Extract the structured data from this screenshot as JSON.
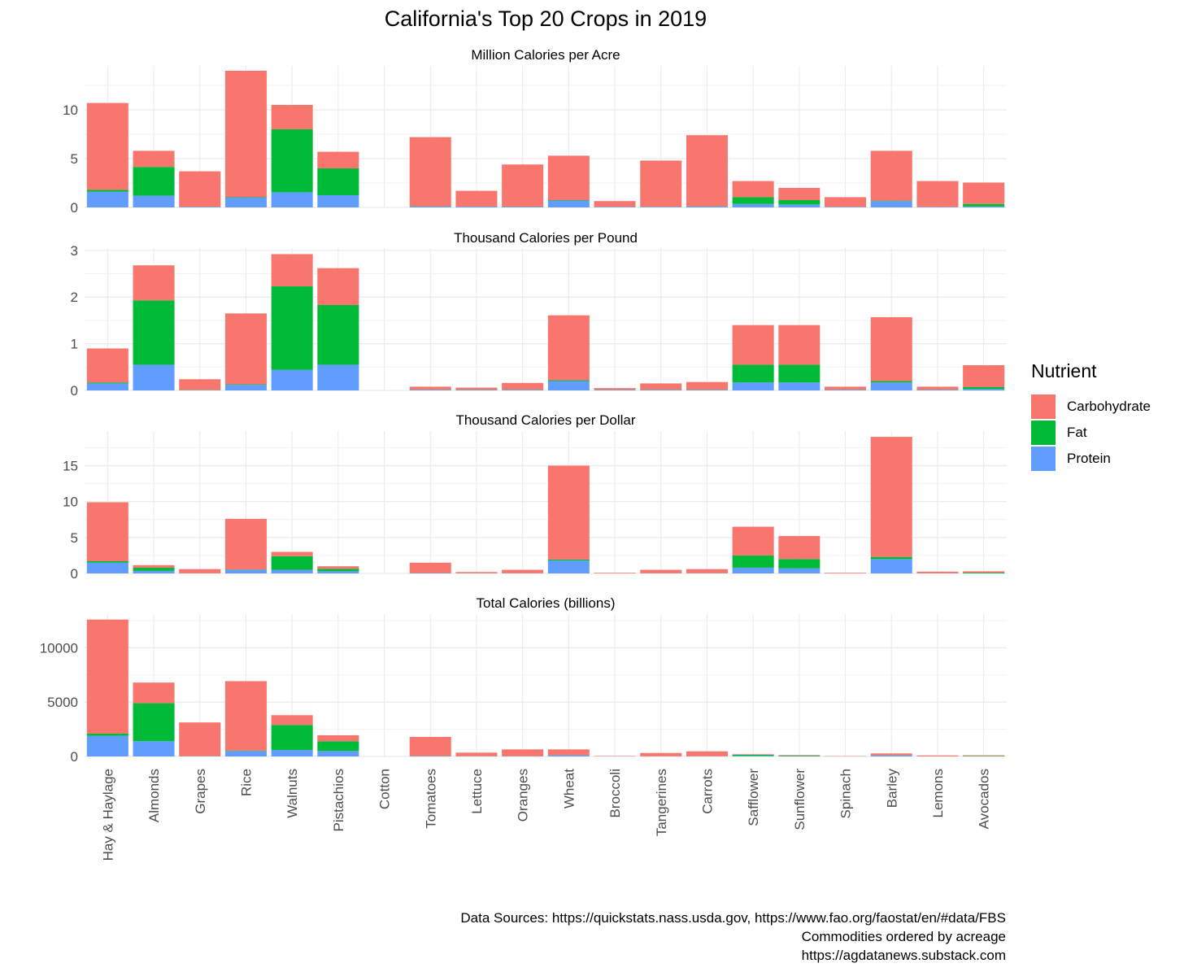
{
  "chart_data": {
    "type": "bar",
    "stacked": true,
    "title": "California's Top 20 Crops in 2019",
    "categories": [
      "Hay & Haylage",
      "Almonds",
      "Grapes",
      "Rice",
      "Walnuts",
      "Pistachios",
      "Cotton",
      "Tomatoes",
      "Lettuce",
      "Oranges",
      "Wheat",
      "Broccoli",
      "Tangerines",
      "Carrots",
      "Safflower",
      "Sunflower",
      "Spinach",
      "Barley",
      "Lemons",
      "Avocados"
    ],
    "legend": {
      "title": "Nutrient",
      "position": "right",
      "entries": [
        {
          "name": "Carbohydrate",
          "color": "#F8766D"
        },
        {
          "name": "Fat",
          "color": "#00BA38"
        },
        {
          "name": "Protein",
          "color": "#619CFF"
        }
      ]
    },
    "panels": [
      {
        "title": "Million Calories per Acre",
        "ylim": [
          0,
          14.5
        ],
        "yticks": [
          0,
          5,
          10
        ],
        "series": [
          {
            "name": "Protein",
            "values": [
              1.6,
              1.2,
              0.05,
              1.0,
              1.55,
              1.25,
              0,
              0.1,
              0.08,
              0.06,
              0.7,
              0.05,
              0.06,
              0.1,
              0.35,
              0.3,
              0.05,
              0.65,
              0.04,
              0.1
            ]
          },
          {
            "name": "Fat",
            "values": [
              0.2,
              2.95,
              0.02,
              0.05,
              6.45,
              2.75,
              0,
              0.02,
              0.01,
              0.02,
              0.05,
              0.01,
              0.01,
              0.02,
              0.7,
              0.45,
              0.01,
              0.05,
              0.01,
              0.25
            ]
          },
          {
            "name": "Carbohydrate",
            "values": [
              8.9,
              1.65,
              3.63,
              12.95,
              2.5,
              1.7,
              0,
              7.08,
              1.61,
              4.32,
              4.55,
              0.59,
              4.73,
              7.28,
              1.65,
              1.25,
              0.99,
              5.1,
              2.65,
              2.2
            ]
          }
        ]
      },
      {
        "title": "Thousand Calories per Pound",
        "ylim": [
          0,
          3.05
        ],
        "yticks": [
          0,
          1,
          2,
          3
        ],
        "series": [
          {
            "name": "Protein",
            "values": [
              0.15,
              0.55,
              0.005,
              0.12,
              0.44,
              0.55,
              0,
              0.01,
              0.01,
              0.01,
              0.2,
              0.01,
              0.01,
              0.01,
              0.17,
              0.17,
              0.01,
              0.17,
              0.01,
              0.03
            ]
          },
          {
            "name": "Fat",
            "values": [
              0.02,
              1.38,
              0.005,
              0.01,
              1.79,
              1.28,
              0,
              0.005,
              0.005,
              0.005,
              0.02,
              0.005,
              0.005,
              0.005,
              0.38,
              0.38,
              0.005,
              0.03,
              0.005,
              0.04
            ]
          },
          {
            "name": "Carbohydrate",
            "values": [
              0.73,
              0.75,
              0.23,
              1.52,
              0.69,
              0.79,
              0,
              0.065,
              0.045,
              0.145,
              1.39,
              0.035,
              0.135,
              0.165,
              0.85,
              0.85,
              0.065,
              1.37,
              0.065,
              0.47
            ]
          }
        ]
      },
      {
        "title": "Thousand Calories per Dollar",
        "ylim": [
          0,
          19.8
        ],
        "yticks": [
          0,
          5,
          10,
          15
        ],
        "series": [
          {
            "name": "Protein",
            "values": [
              1.5,
              0.35,
              0.01,
              0.5,
              0.5,
              0.3,
              0,
              0.05,
              0.02,
              0.02,
              1.8,
              0.01,
              0.02,
              0.03,
              0.8,
              0.7,
              0.01,
              2.0,
              0.01,
              0.01
            ]
          },
          {
            "name": "Fat",
            "values": [
              0.2,
              0.45,
              0.01,
              0.05,
              1.9,
              0.35,
              0,
              0.01,
              0.01,
              0.01,
              0.15,
              0.01,
              0.01,
              0.01,
              1.7,
              1.3,
              0.01,
              0.3,
              0.01,
              0.1
            ]
          },
          {
            "name": "Carbohydrate",
            "values": [
              8.2,
              0.35,
              0.58,
              7.05,
              0.6,
              0.35,
              0,
              1.44,
              0.17,
              0.47,
              13.05,
              0.08,
              0.47,
              0.56,
              4.0,
              3.2,
              0.08,
              16.7,
              0.23,
              0.19
            ]
          }
        ]
      },
      {
        "title": "Total Calories (billions)",
        "ylim": [
          0,
          13100
        ],
        "yticks": [
          0,
          5000,
          10000
        ],
        "series": [
          {
            "name": "Protein",
            "values": [
              1900,
              1400,
              20,
              500,
              600,
              500,
              0,
              30,
              20,
              20,
              100,
              5,
              10,
              20,
              50,
              30,
              5,
              80,
              5,
              10
            ]
          },
          {
            "name": "Fat",
            "values": [
              200,
              3500,
              10,
              30,
              2300,
              900,
              0,
              10,
              5,
              10,
              10,
              2,
              5,
              5,
              100,
              50,
              2,
              20,
              2,
              40
            ]
          },
          {
            "name": "Carbohydrate",
            "values": [
              10500,
              1900,
              3100,
              6400,
              900,
              550,
              0,
              1760,
              325,
              620,
              540,
              40,
              305,
              445,
              50,
              50,
              30,
              180,
              90,
              60
            ]
          }
        ]
      }
    ]
  },
  "caption": {
    "line1": "Data Sources: https://quickstats.nass.usda.gov, https://www.fao.org/faostat/en/#data/FBS",
    "line2": "Commodities ordered by acreage",
    "line3": "https://agdatanews.substack.com"
  }
}
